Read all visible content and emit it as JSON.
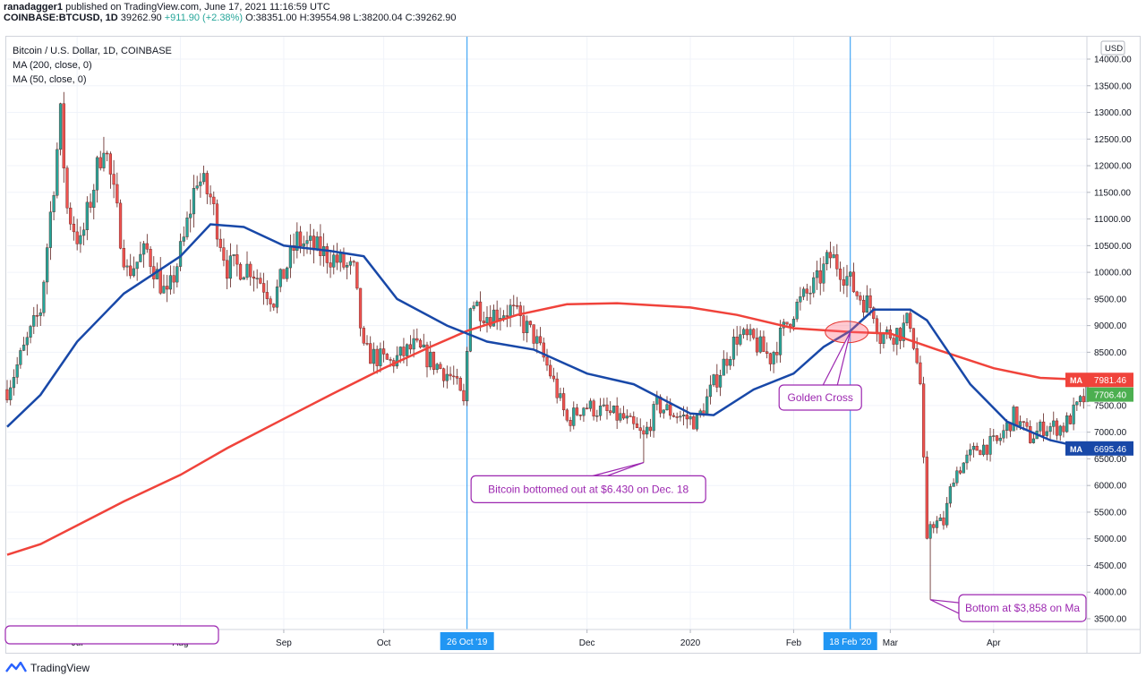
{
  "header": {
    "author": "ranadagger1",
    "published_text": "published on TradingView.com, June 17, 2021 11:16:59 UTC",
    "symbol": "COINBASE:BTCUSD, 1D",
    "last": "39262.90",
    "change": "+911.90 (+2.38%)",
    "ohlc": "O:38351.00 H:39554.98 L:38200.04 C:39262.90"
  },
  "legend": {
    "title": "Bitcoin / U.S. Dollar, 1D, COINBASE",
    "ma200": "MA (200, close, 0)",
    "ma50": "MA (50, close, 0)"
  },
  "footer": {
    "brand": "TradingView"
  },
  "colors": {
    "up": "#26a69a",
    "down": "#ef5350",
    "candle": "#5d1f1c",
    "ma200": "#f0433b",
    "ma50": "#1848a8",
    "vline": "#2196f3",
    "annotation": "#9c27b0",
    "last_price": "#4caf50"
  },
  "chart_data": {
    "type": "candlestick",
    "currency_badge": "USD",
    "y_ticks": [
      "14000.00",
      "13500.00",
      "13000.00",
      "12500.00",
      "12000.00",
      "11500.00",
      "11000.00",
      "10500.00",
      "10000.00",
      "9500.00",
      "9000.00",
      "8500.00",
      "8000.00",
      "7500.00",
      "7000.00",
      "6500.00",
      "6000.00",
      "5500.00",
      "5000.00",
      "4500.00",
      "4000.00",
      "3500.00"
    ],
    "ylim": [
      3300,
      14250
    ],
    "x_start": "2019-06-10",
    "x_end": "2020-04-29",
    "x_ticks": [
      {
        "label": "Jul",
        "date": "2019-07-01"
      },
      {
        "label": "Aug",
        "date": "2019-08-01"
      },
      {
        "label": "Sep",
        "date": "2019-09-01"
      },
      {
        "label": "Oct",
        "date": "2019-10-01"
      },
      {
        "label": "Dec",
        "date": "2019-12-01"
      },
      {
        "label": "2020",
        "date": "2020-01-01"
      },
      {
        "label": "Feb",
        "date": "2020-02-01"
      },
      {
        "label": "Mar",
        "date": "2020-03-01"
      },
      {
        "label": "Apr",
        "date": "2020-04-01"
      }
    ],
    "price_path": [
      [
        "2019-06-10",
        7800
      ],
      [
        "2019-06-20",
        9300
      ],
      [
        "2019-06-26",
        12900
      ],
      [
        "2019-06-28",
        11200
      ],
      [
        "2019-07-02",
        10500
      ],
      [
        "2019-07-09",
        12500
      ],
      [
        "2019-07-16",
        10000
      ],
      [
        "2019-07-22",
        10400
      ],
      [
        "2019-07-28",
        9500
      ],
      [
        "2019-08-02",
        10600
      ],
      [
        "2019-08-06",
        11800
      ],
      [
        "2019-08-10",
        11400
      ],
      [
        "2019-08-15",
        10100
      ],
      [
        "2019-08-22",
        10100
      ],
      [
        "2019-08-29",
        9500
      ],
      [
        "2019-09-05",
        10600
      ],
      [
        "2019-09-15",
        10300
      ],
      [
        "2019-09-22",
        10000
      ],
      [
        "2019-09-25",
        8500
      ],
      [
        "2019-10-03",
        8300
      ],
      [
        "2019-10-10",
        8600
      ],
      [
        "2019-10-22",
        8000
      ],
      [
        "2019-10-25",
        7500
      ],
      [
        "2019-10-27",
        9500
      ],
      [
        "2019-11-01",
        9200
      ],
      [
        "2019-11-08",
        9300
      ],
      [
        "2019-11-15",
        8800
      ],
      [
        "2019-11-20",
        8100
      ],
      [
        "2019-11-25",
        7200
      ],
      [
        "2019-11-30",
        7500
      ],
      [
        "2019-12-05",
        7400
      ],
      [
        "2019-12-12",
        7250
      ],
      [
        "2019-12-18",
        6900
      ],
      [
        "2019-12-22",
        7500
      ],
      [
        "2019-12-29",
        7300
      ],
      [
        "2020-01-03",
        7200
      ],
      [
        "2020-01-08",
        7900
      ],
      [
        "2020-01-15",
        8800
      ],
      [
        "2020-01-20",
        8700
      ],
      [
        "2020-01-25",
        8400
      ],
      [
        "2020-02-01",
        9300
      ],
      [
        "2020-02-08",
        9800
      ],
      [
        "2020-02-12",
        10300
      ],
      [
        "2020-02-15",
        10100
      ],
      [
        "2020-02-20",
        9600
      ],
      [
        "2020-02-25",
        9300
      ],
      [
        "2020-02-27",
        8800
      ],
      [
        "2020-03-04",
        8900
      ],
      [
        "2020-03-07",
        9100
      ],
      [
        "2020-03-10",
        7900
      ],
      [
        "2020-03-12",
        4900
      ],
      [
        "2020-03-13",
        5300
      ],
      [
        "2020-03-17",
        5300
      ],
      [
        "2020-03-20",
        6200
      ],
      [
        "2020-03-27",
        6700
      ],
      [
        "2020-04-02",
        6800
      ],
      [
        "2020-04-07",
        7300
      ],
      [
        "2020-04-12",
        6900
      ],
      [
        "2020-04-16",
        7100
      ],
      [
        "2020-04-22",
        7100
      ],
      [
        "2020-04-29",
        7706
      ]
    ],
    "ma200_path": [
      [
        "2019-06-10",
        4700
      ],
      [
        "2019-06-20",
        4900
      ],
      [
        "2019-07-01",
        5250
      ],
      [
        "2019-07-15",
        5700
      ],
      [
        "2019-08-01",
        6200
      ],
      [
        "2019-08-15",
        6700
      ],
      [
        "2019-09-01",
        7250
      ],
      [
        "2019-09-15",
        7700
      ],
      [
        "2019-10-01",
        8200
      ],
      [
        "2019-10-15",
        8600
      ],
      [
        "2019-10-26",
        8900
      ],
      [
        "2019-11-10",
        9200
      ],
      [
        "2019-11-25",
        9400
      ],
      [
        "2019-12-10",
        9420
      ],
      [
        "2020-01-01",
        9340
      ],
      [
        "2020-01-15",
        9200
      ],
      [
        "2020-02-01",
        8950
      ],
      [
        "2020-02-18",
        8880
      ],
      [
        "2020-03-01",
        8850
      ],
      [
        "2020-03-15",
        8550
      ],
      [
        "2020-04-01",
        8200
      ],
      [
        "2020-04-15",
        8020
      ],
      [
        "2020-04-29",
        7981
      ]
    ],
    "ma50_path": [
      [
        "2019-06-10",
        7100
      ],
      [
        "2019-06-20",
        7700
      ],
      [
        "2019-07-01",
        8700
      ],
      [
        "2019-07-15",
        9600
      ],
      [
        "2019-08-01",
        10300
      ],
      [
        "2019-08-10",
        10900
      ],
      [
        "2019-08-20",
        10850
      ],
      [
        "2019-09-01",
        10500
      ],
      [
        "2019-09-15",
        10400
      ],
      [
        "2019-09-25",
        10300
      ],
      [
        "2019-10-05",
        9500
      ],
      [
        "2019-10-20",
        9000
      ],
      [
        "2019-11-01",
        8700
      ],
      [
        "2019-11-15",
        8550
      ],
      [
        "2019-12-01",
        8100
      ],
      [
        "2019-12-15",
        7900
      ],
      [
        "2020-01-01",
        7350
      ],
      [
        "2020-01-08",
        7320
      ],
      [
        "2020-01-20",
        7800
      ],
      [
        "2020-02-01",
        8100
      ],
      [
        "2020-02-10",
        8600
      ],
      [
        "2020-02-18",
        8900
      ],
      [
        "2020-02-25",
        9300
      ],
      [
        "2020-03-07",
        9300
      ],
      [
        "2020-03-12",
        9100
      ],
      [
        "2020-03-25",
        7900
      ],
      [
        "2020-04-05",
        7200
      ],
      [
        "2020-04-18",
        6850
      ],
      [
        "2020-04-29",
        6695
      ]
    ],
    "lows_spikes": [
      [
        "2019-12-18",
        6430
      ],
      [
        "2020-03-13",
        3858
      ]
    ],
    "vlines": [
      {
        "date": "2019-10-26",
        "label": "26 Oct '19"
      },
      {
        "date": "2020-02-18",
        "label": "18 Feb '20"
      }
    ],
    "price_labels": [
      {
        "name": "ma200",
        "text": "7981.46",
        "value": 7981.46,
        "tag": "MA"
      },
      {
        "name": "last",
        "text": "7706.40",
        "value": 7706.4,
        "tag": ""
      },
      {
        "name": "ma50",
        "text": "6695.46",
        "value": 6695.46,
        "tag": "MA"
      }
    ],
    "annotations": [
      {
        "text": "Golden Cross",
        "date": "2020-02-09",
        "value": 7650,
        "target_date": "2020-02-18",
        "target_value": 8880
      },
      {
        "text": "Bitcoin bottomed out at $6.430 on Dec. 18",
        "date": "2019-12-10",
        "value": 5930,
        "target_date": "2019-12-18",
        "target_value": 6430
      },
      {
        "text": "Bottom at $3,858 on Ma",
        "date": "2020-03-24",
        "value": 3700,
        "target_date": "2020-03-13",
        "target_value": 3858
      }
    ]
  }
}
